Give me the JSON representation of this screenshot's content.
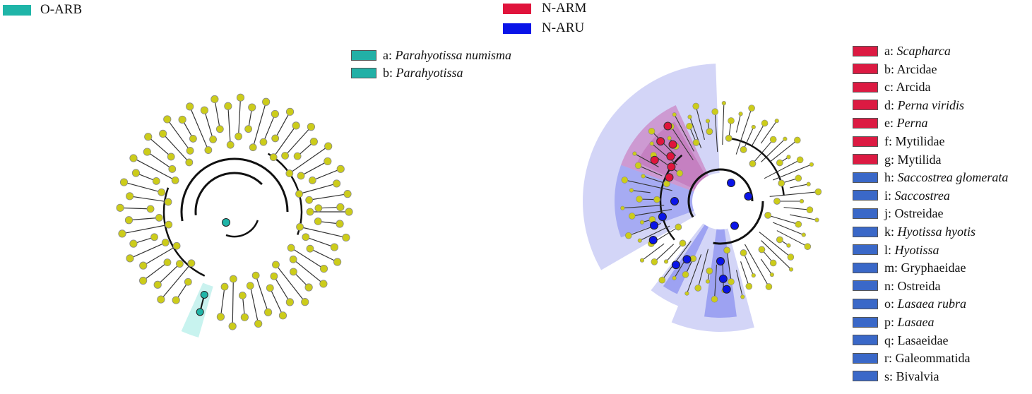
{
  "colors": {
    "o_arb": "#1fb5a8",
    "n_arm": "#e0143c",
    "n_aru": "#0a14e8",
    "key_teal": "#22b0a6",
    "key_red": "#dc1a42",
    "key_blue": "#3a68c8",
    "node_yellow": "#cccc1a"
  },
  "group_legend": {
    "o_arb": "O-ARB",
    "n_arm": "N-ARM",
    "n_aru": "N-ARU"
  },
  "left_key": [
    {
      "letter": "a:",
      "name": "Parahyotissa numisma",
      "italic": true,
      "color": "teal"
    },
    {
      "letter": "b:",
      "name": "Parahyotissa",
      "italic": true,
      "color": "teal"
    }
  ],
  "right_key": [
    {
      "letter": "a:",
      "name": "Scapharca",
      "italic": true,
      "color": "red"
    },
    {
      "letter": "b:",
      "name": "Arcidae",
      "italic": false,
      "color": "red"
    },
    {
      "letter": "c:",
      "name": "Arcida",
      "italic": false,
      "color": "red"
    },
    {
      "letter": "d:",
      "name": "Perna viridis",
      "italic": true,
      "color": "red"
    },
    {
      "letter": "e:",
      "name": "Perna",
      "italic": true,
      "color": "red"
    },
    {
      "letter": "f:",
      "name": "Mytilidae",
      "italic": false,
      "color": "red"
    },
    {
      "letter": "g:",
      "name": "Mytilida",
      "italic": false,
      "color": "red"
    },
    {
      "letter": "h:",
      "name": "Saccostrea glomerata",
      "italic": true,
      "color": "blue"
    },
    {
      "letter": "i:",
      "name": "Saccostrea",
      "italic": true,
      "color": "blue"
    },
    {
      "letter": "j:",
      "name": "Ostreidae",
      "italic": false,
      "color": "blue"
    },
    {
      "letter": "k:",
      "name": "Hyotissa hyotis",
      "italic": true,
      "color": "blue"
    },
    {
      "letter": "l:",
      "name": "Hyotissa",
      "italic": true,
      "color": "blue"
    },
    {
      "letter": "m:",
      "name": "Gryphaeidae",
      "italic": false,
      "color": "blue"
    },
    {
      "letter": "n:",
      "name": "Ostreida",
      "italic": false,
      "color": "blue"
    },
    {
      "letter": "o:",
      "name": "Lasaea rubra",
      "italic": true,
      "color": "blue"
    },
    {
      "letter": "p:",
      "name": "Lasaea",
      "italic": true,
      "color": "blue"
    },
    {
      "letter": "q:",
      "name": "Lasaeidae",
      "italic": false,
      "color": "blue"
    },
    {
      "letter": "r:",
      "name": "Galeommatida",
      "italic": false,
      "color": "blue"
    },
    {
      "letter": "s:",
      "name": "Bivalvia",
      "italic": false,
      "color": "blue"
    }
  ]
}
